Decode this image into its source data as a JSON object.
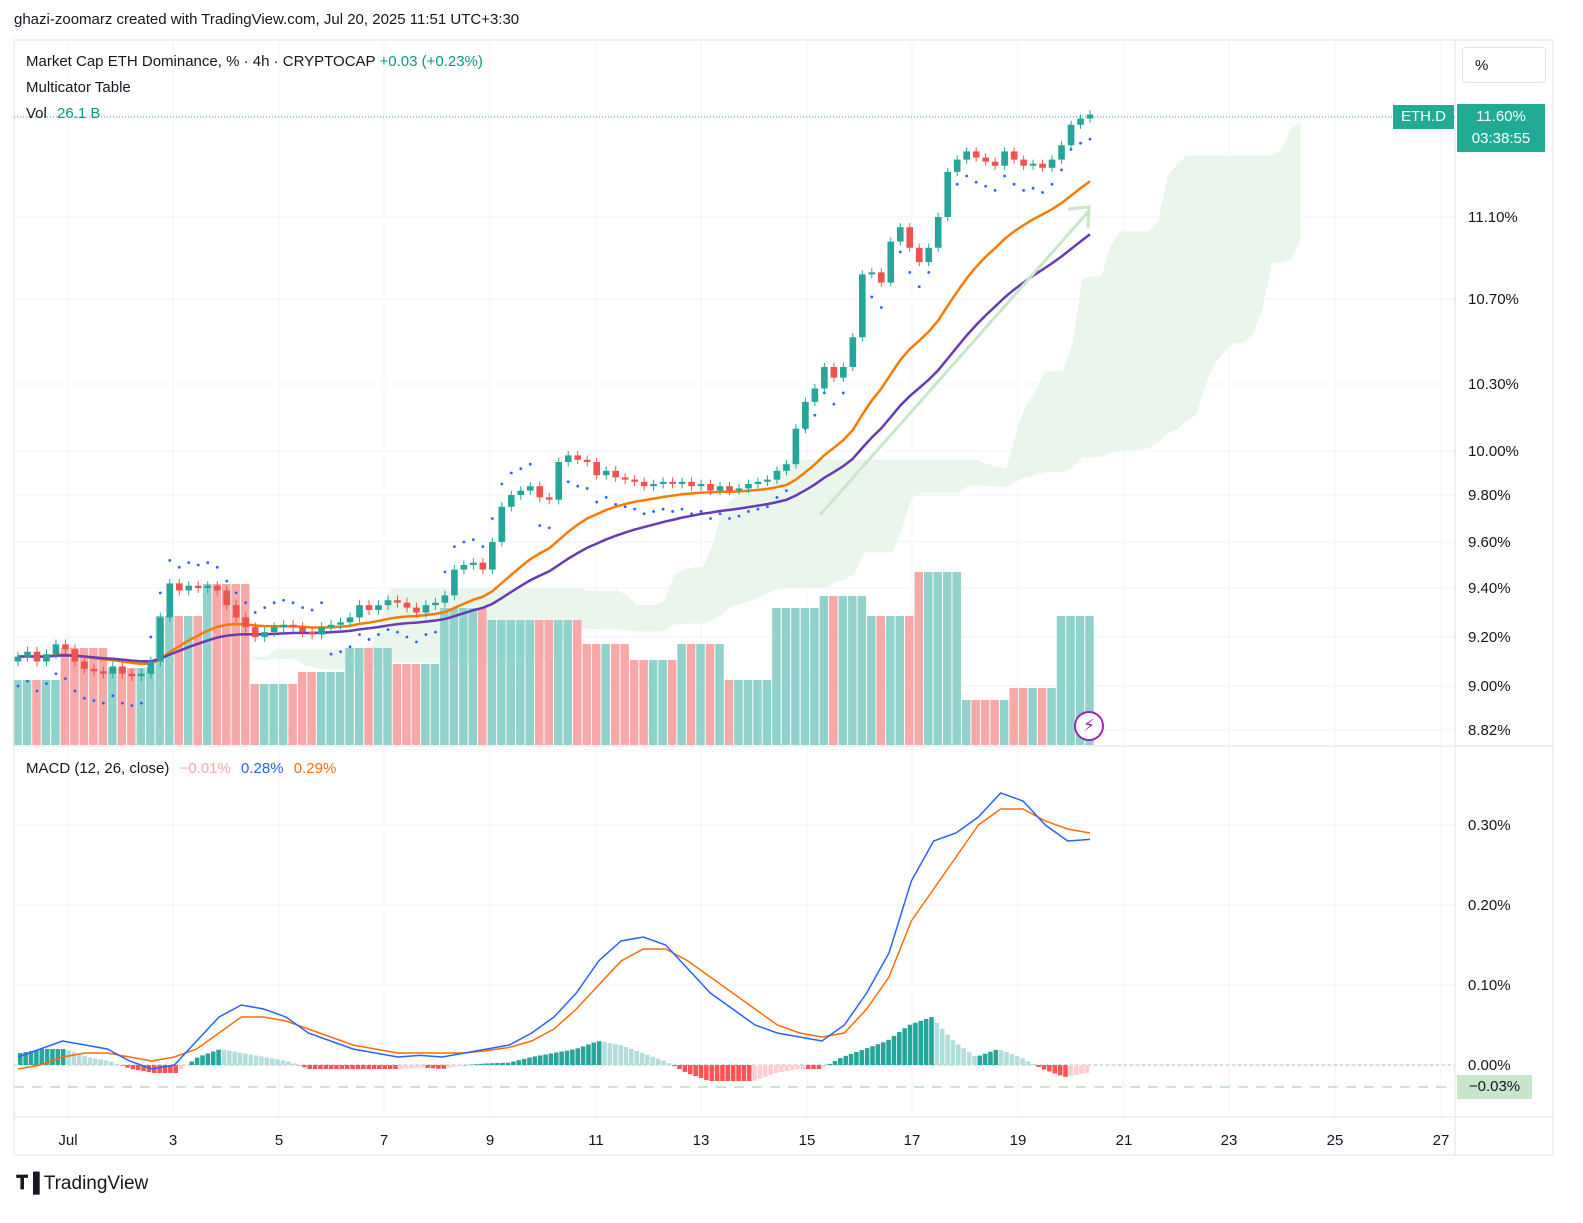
{
  "caption": "ghazi-zoomarz created with TradingView.com, Jul 20, 2025 11:51 UTC+3:30",
  "legend": {
    "symbol": "Market Cap ETH Dominance, % · 4h · CRYPTOCAP",
    "change": "+0.03 (+0.23%)",
    "indicator": "Multicator Table",
    "vol_label": "Vol",
    "vol_value": "26.1 B",
    "macd_label": "MACD (12, 26, close)",
    "macd_hist": "−0.01%",
    "macd_line": "0.28%",
    "macd_signal": "0.29%"
  },
  "scale_mode": "%",
  "symbol_tag": "ETH.D",
  "last_price": "11.60%",
  "countdown": "03:38:55",
  "macd_last_label": "−0.03%",
  "footer": "TradingView",
  "icons": {
    "flash": "lightning-icon",
    "logo": "tradingview-logo-icon"
  },
  "colors": {
    "up": "#26a69a",
    "down": "#ef5350",
    "vol_up": "#92d2cc",
    "vol_down": "#f7a9a7",
    "ema_fast": "#f57c00",
    "ema_slow": "#673ab7",
    "macd": "#2962ff",
    "signal": "#ff6d00",
    "cloud": "#e8f5e9",
    "sar": "#2962ff"
  },
  "chart_data": [
    {
      "type": "candlestick",
      "title": "Market Cap ETH Dominance, % · 4h · CRYPTOCAP",
      "y_axis_ticks": [
        "8.82%",
        "9.00%",
        "9.20%",
        "9.40%",
        "9.60%",
        "9.80%",
        "10.00%",
        "10.30%",
        "10.70%",
        "11.10%"
      ],
      "x_axis_ticks": [
        "Jul",
        "3",
        "5",
        "7",
        "9",
        "11",
        "13",
        "15",
        "17",
        "19",
        "21",
        "23",
        "25",
        "27"
      ],
      "ylim": [
        8.82,
        11.6
      ],
      "y_scale": "log",
      "close_series": [
        9.12,
        9.14,
        9.1,
        9.13,
        9.17,
        9.15,
        9.1,
        9.07,
        9.06,
        9.05,
        9.08,
        9.05,
        9.04,
        9.05,
        9.1,
        9.28,
        9.42,
        9.39,
        9.41,
        9.4,
        9.41,
        9.39,
        9.33,
        9.28,
        9.24,
        9.2,
        9.22,
        9.24,
        9.25,
        9.24,
        9.22,
        9.21,
        9.24,
        9.25,
        9.26,
        9.28,
        9.33,
        9.31,
        9.33,
        9.35,
        9.34,
        9.32,
        9.3,
        9.33,
        9.34,
        9.37,
        9.48,
        9.5,
        9.51,
        9.48,
        9.6,
        9.75,
        9.8,
        9.82,
        9.84,
        9.79,
        9.78,
        9.95,
        9.98,
        9.96,
        9.95,
        9.89,
        9.91,
        9.88,
        9.87,
        9.86,
        9.84,
        9.85,
        9.86,
        9.85,
        9.86,
        9.84,
        9.85,
        9.82,
        9.84,
        9.82,
        9.83,
        9.85,
        9.86,
        9.87,
        9.91,
        9.94,
        10.1,
        10.22,
        10.28,
        10.38,
        10.33,
        10.38,
        10.52,
        10.82,
        10.83,
        10.78,
        10.98,
        11.05,
        10.95,
        10.88,
        10.95,
        11.1,
        11.32,
        11.38,
        11.42,
        11.39,
        11.37,
        11.35,
        11.42,
        11.38,
        11.35,
        11.36,
        11.34,
        11.38,
        11.45,
        11.55,
        11.58,
        11.6
      ],
      "volume_note": "volume in B, last 26.1 B",
      "overlays": [
        "EMA fast (orange)",
        "EMA slow (purple)",
        "Ichimoku cloud",
        "Parabolic SAR"
      ],
      "last": 11.6
    },
    {
      "type": "line",
      "title": "MACD (12, 26, close)",
      "y_axis_ticks": [
        "0.00%",
        "0.10%",
        "0.20%",
        "0.30%"
      ],
      "ylim": [
        -0.06,
        0.36
      ],
      "series": [
        {
          "name": "MACD",
          "values": [
            0.01,
            0.02,
            0.03,
            0.025,
            0.02,
            0.005,
            -0.005,
            0.0,
            0.03,
            0.06,
            0.075,
            0.07,
            0.06,
            0.04,
            0.03,
            0.02,
            0.015,
            0.01,
            0.012,
            0.01,
            0.015,
            0.02,
            0.025,
            0.04,
            0.06,
            0.09,
            0.13,
            0.155,
            0.16,
            0.15,
            0.12,
            0.09,
            0.07,
            0.05,
            0.04,
            0.035,
            0.03,
            0.05,
            0.09,
            0.14,
            0.23,
            0.28,
            0.29,
            0.31,
            0.34,
            0.33,
            0.3,
            0.28,
            0.282
          ]
        },
        {
          "name": "Signal",
          "values": [
            -0.005,
            0.0,
            0.01,
            0.015,
            0.015,
            0.01,
            0.005,
            0.01,
            0.02,
            0.04,
            0.06,
            0.06,
            0.055,
            0.045,
            0.035,
            0.025,
            0.02,
            0.015,
            0.015,
            0.015,
            0.015,
            0.018,
            0.022,
            0.03,
            0.045,
            0.07,
            0.1,
            0.13,
            0.145,
            0.145,
            0.13,
            0.11,
            0.09,
            0.07,
            0.05,
            0.04,
            0.035,
            0.04,
            0.07,
            0.11,
            0.18,
            0.22,
            0.26,
            0.3,
            0.32,
            0.32,
            0.305,
            0.295,
            0.29
          ]
        },
        {
          "name": "Histogram",
          "values": [
            0.015,
            0.02,
            0.02,
            0.01,
            0.005,
            -0.005,
            -0.01,
            -0.01,
            0.01,
            0.02,
            0.015,
            0.01,
            0.005,
            -0.005,
            -0.005,
            -0.005,
            -0.005,
            -0.005,
            -0.003,
            -0.005,
            0.0,
            0.002,
            0.003,
            0.01,
            0.015,
            0.02,
            0.03,
            0.025,
            0.015,
            0.005,
            -0.01,
            -0.02,
            -0.02,
            -0.02,
            -0.01,
            -0.005,
            -0.005,
            0.01,
            0.02,
            0.03,
            0.05,
            0.06,
            0.03,
            0.01,
            0.02,
            0.01,
            -0.005,
            -0.015,
            -0.01
          ]
        }
      ]
    }
  ]
}
